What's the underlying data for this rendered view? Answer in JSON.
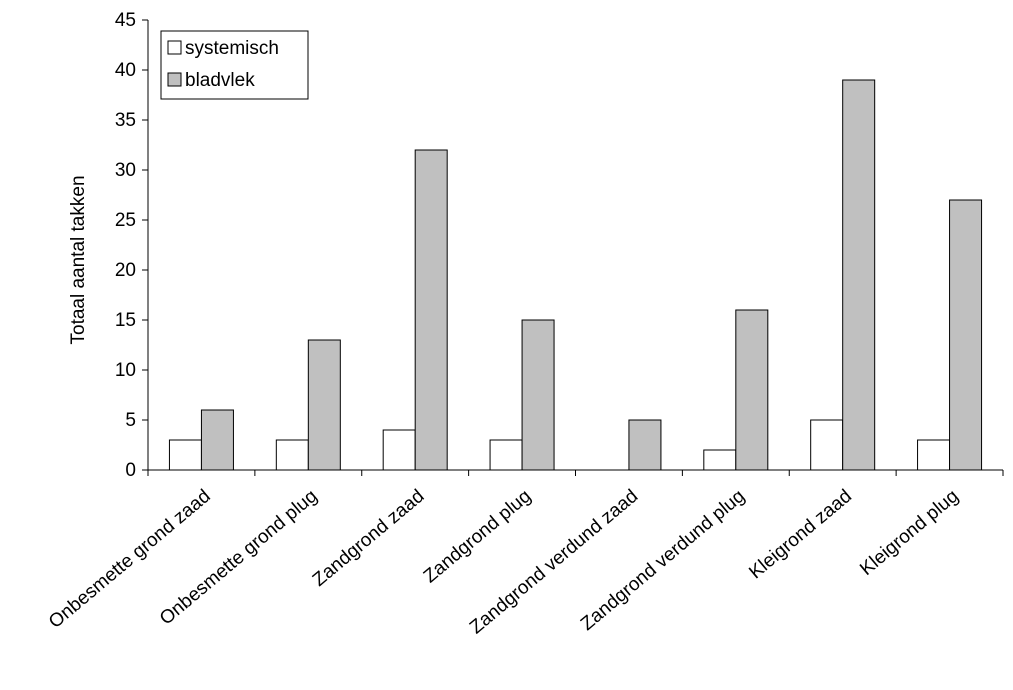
{
  "chart_data": {
    "type": "bar",
    "title": "",
    "xlabel": "",
    "ylabel": "Totaal aantal takken",
    "ylim": [
      0,
      45
    ],
    "yticks": [
      0,
      5,
      10,
      15,
      20,
      25,
      30,
      35,
      40,
      45
    ],
    "categories": [
      "Onbesmette grond zaad",
      "Onbesmette grond plug",
      "Zandgrond zaad",
      "Zandgrond plug",
      "Zandgrond verdund zaad",
      "Zandgrond verdund plug",
      "Kleigrond zaad",
      "Kleigrond plug"
    ],
    "series": [
      {
        "name": "systemisch",
        "values": [
          3,
          3,
          4,
          3,
          0,
          2,
          5,
          3
        ],
        "color": "#ffffff"
      },
      {
        "name": "bladvlek",
        "values": [
          6,
          13,
          32,
          15,
          5,
          16,
          39,
          27
        ],
        "color": "#c0c0c0"
      }
    ],
    "grid": false,
    "legend_position": "top-left"
  }
}
